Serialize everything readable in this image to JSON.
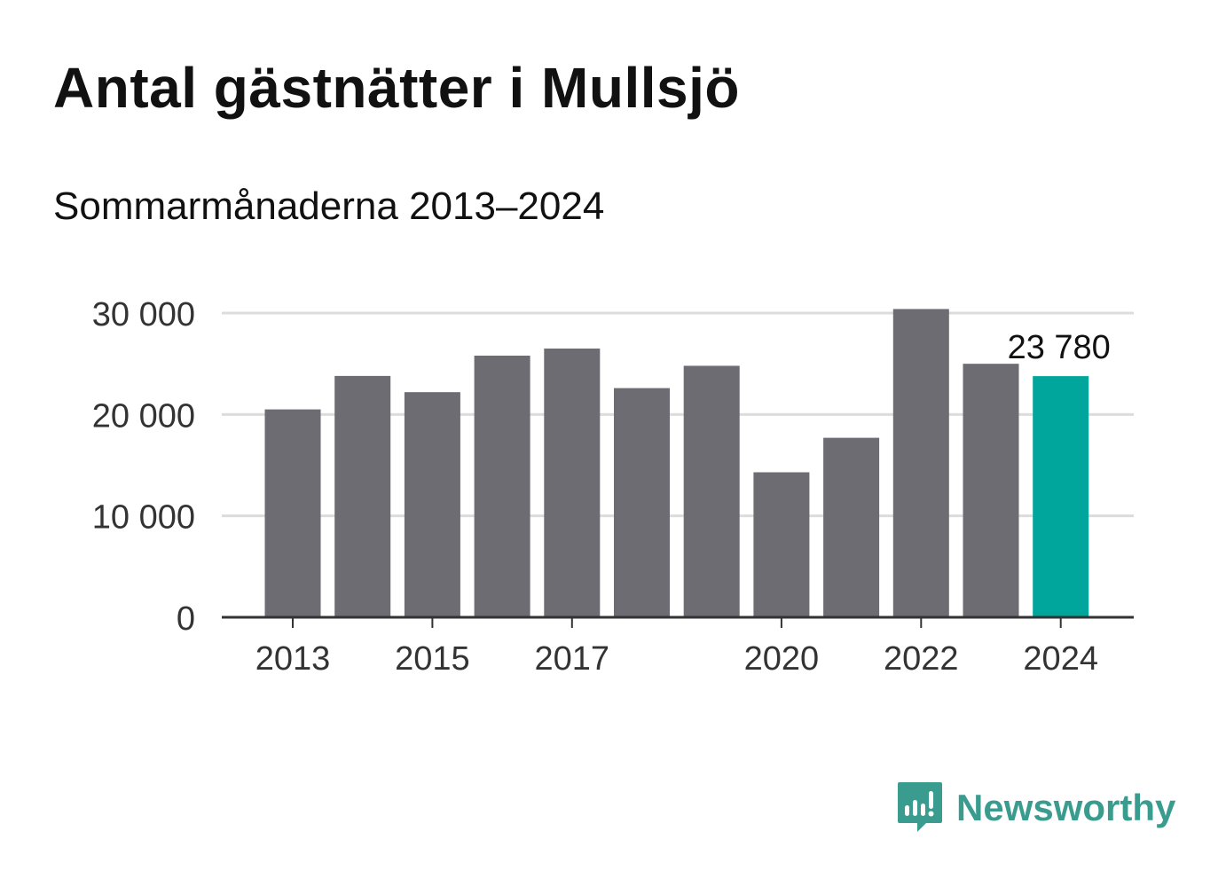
{
  "chart_data": {
    "type": "bar",
    "title": "Antal gästnätter i Mullsjö",
    "subtitle": "Sommarmånaderna 2013–2024",
    "categories": [
      "2013",
      "2014",
      "2015",
      "2016",
      "2017",
      "2018",
      "2019",
      "2020",
      "2021",
      "2022",
      "2023",
      "2024"
    ],
    "values": [
      20500,
      23800,
      22200,
      25800,
      26500,
      22600,
      24800,
      14300,
      17700,
      30400,
      25000,
      23780
    ],
    "x_tick_labels": [
      "2013",
      "2015",
      "2017",
      "2020",
      "2022",
      "2024"
    ],
    "y_ticks": [
      0,
      10000,
      20000,
      30000
    ],
    "y_tick_labels": [
      "0",
      "10 000",
      "20 000",
      "30 000"
    ],
    "ylim": [
      0,
      30000
    ],
    "xlabel": "",
    "ylabel": "",
    "grid": true,
    "highlight": {
      "category": "2024",
      "label": "23 780"
    },
    "colors": {
      "bar": "#6d6c73",
      "highlight": "#00a59b",
      "grid": "#dcdcdc",
      "axis": "#333333",
      "text": "#333333"
    }
  },
  "branding": {
    "name": "Newsworthy",
    "icon": "newsworthy-logo-icon",
    "color": "#3a9c8f"
  }
}
